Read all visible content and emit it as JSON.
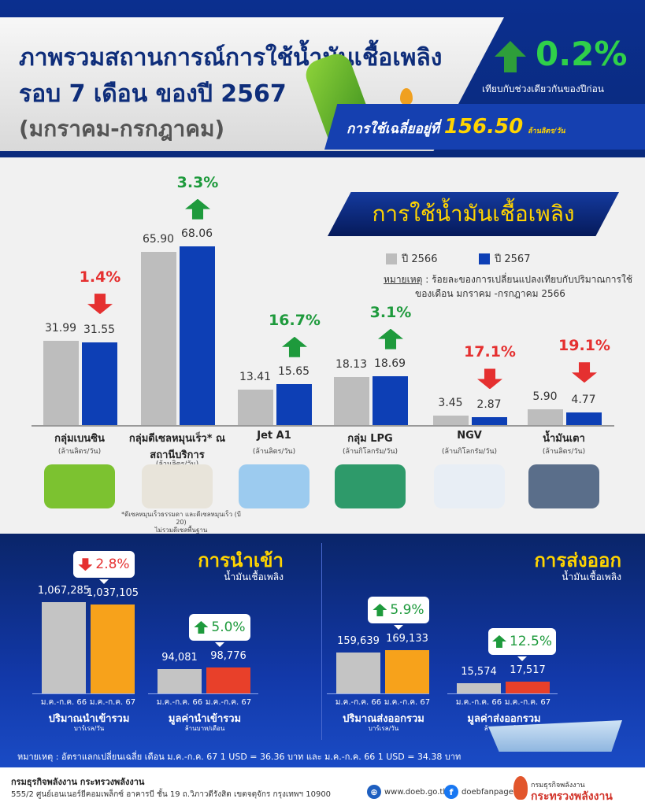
{
  "header": {
    "title_line1": "ภาพรวมสถานการณ์การใช้น้ำมันเชื้อเพลิง",
    "title_line2": "รอบ 7 เดือน ของปี 2567",
    "title_line3": "(มกราคม-กรกฎาคม)",
    "change_pct": "0.2%",
    "change_direction": "up",
    "change_caption": "เทียบกับช่วงเดียวกันของปีก่อน",
    "avg_prefix": "การใช้เฉลี่ยอยู่ที่",
    "avg_value": "156.50",
    "avg_unit": "ล้านลิตร/วัน"
  },
  "colors": {
    "y2566": "#bdbdbd",
    "y2567": "#0d3fb5",
    "up": "#1e9a3c",
    "down": "#e53030",
    "import_export_2567_volume": "#f7a21b",
    "import_export_2567_value": "#e8402a",
    "accent_yellow": "#ffd400"
  },
  "usage": {
    "section_title": "การใช้น้ำมันเชื้อเพลิง",
    "legend": [
      "ปี 2566",
      "ปี 2567"
    ],
    "note_label": "หมายเหตุ",
    "note_text": " : ร้อยละของการเปลี่ยนแปลงเทียบกับปริมาณการใช้",
    "note_text2": "ของเดือน มกราคม -กรกฎาคม 2566",
    "footnote1": "*ดีเซลหมุนเร็วธรรมดา และดีเซลหมุนเร็ว (บี 20)",
    "footnote2": "ไม่รวมดีเซลพื้นฐาน"
  },
  "chart_data": [
    {
      "type": "bar",
      "title": "การใช้น้ำมันเชื้อเพลิง",
      "categories": [
        "กลุ่มเบนซิน",
        "กลุ่มดีเซลหมุนเร็ว* ณ สถานีบริการ",
        "Jet A1",
        "กลุ่ม LPG",
        "NGV",
        "น้ำมันเตา"
      ],
      "units": [
        "(ล้านลิตร/วัน)",
        "(ล้านลิตร/วัน)",
        "(ล้านลิตร/วัน)",
        "(ล้านกิโลกรัม/วัน)",
        "(ล้านกิโลกรัม/วัน)",
        "(ล้านลิตร/วัน)"
      ],
      "series": [
        {
          "name": "ปี 2566",
          "values": [
            31.99,
            65.9,
            13.41,
            18.13,
            3.45,
            5.9
          ]
        },
        {
          "name": "ปี 2567",
          "values": [
            31.55,
            68.06,
            15.65,
            18.69,
            2.87,
            4.77
          ]
        }
      ],
      "change_labels": [
        "1.4%",
        "3.3%",
        "16.7%",
        "3.1%",
        "17.1%",
        "19.1%"
      ],
      "change_directions": [
        "down",
        "up",
        "up",
        "up",
        "down",
        "down"
      ],
      "value_labels": [
        [
          "31.99",
          "31.55"
        ],
        [
          "65.90",
          "68.06"
        ],
        [
          "13.41",
          "15.65"
        ],
        [
          "18.13",
          "18.69"
        ],
        [
          "3.45",
          "2.87"
        ],
        [
          "5.90",
          "4.77"
        ]
      ],
      "icons": [
        "car-icon",
        "pickup-truck-icon",
        "airplane-icon",
        "lpg-cylinder-icon",
        "ngv-truck-icon",
        "factory-icon"
      ],
      "legend_position": "top-right",
      "grid": false
    },
    {
      "type": "bar",
      "title": "การนำเข้า",
      "subtitle": "น้ำมันเชื้อเพลิง",
      "groups": [
        {
          "name": "ปริมาณนำเข้ารวม",
          "unit": "บาร์เรล/วัน",
          "categories": [
            "ม.ค.-ก.ค. 66",
            "ม.ค.-ก.ค. 67"
          ],
          "values": [
            1067285,
            1037105
          ],
          "labels": [
            "1,067,285",
            "1,037,105"
          ],
          "change": "2.8%",
          "direction": "down"
        },
        {
          "name": "มูลค่านำเข้ารวม",
          "unit": "ล้านบาท/เดือน",
          "categories": [
            "ม.ค.-ก.ค. 66",
            "ม.ค.-ก.ค. 67"
          ],
          "values": [
            94081,
            98776
          ],
          "labels": [
            "94,081",
            "98,776"
          ],
          "change": "5.0%",
          "direction": "up"
        }
      ]
    },
    {
      "type": "bar",
      "title": "การส่งออก",
      "subtitle": "น้ำมันเชื้อเพลิง",
      "groups": [
        {
          "name": "ปริมาณส่งออกรวม",
          "unit": "บาร์เรล/วัน",
          "categories": [
            "ม.ค.-ก.ค. 66",
            "ม.ค.-ก.ค. 67"
          ],
          "values": [
            159639,
            169133
          ],
          "labels": [
            "159,639",
            "169,133"
          ],
          "change": "5.9%",
          "direction": "up"
        },
        {
          "name": "มูลค่าส่งออกรวม",
          "unit": "ล้านบาท/เดือน",
          "categories": [
            "ม.ค.-ก.ค. 66",
            "ม.ค.-ก.ค. 67"
          ],
          "values": [
            15574,
            17517
          ],
          "labels": [
            "15,574",
            "17,517"
          ],
          "change": "12.5%",
          "direction": "up"
        }
      ]
    }
  ],
  "exchange_note": "หมายเหตุ : อัตราแลกเปลี่ยนเฉลี่ย เดือน ม.ค.-ก.ค. 67 1 USD = 36.36 บาท และ ม.ค.-ก.ค. 66 1 USD = 34.38 บาท",
  "footer": {
    "org": "กรมธุรกิจพลังงาน กระทรวงพลังงาน",
    "address": "555/2 ศูนย์เอนเนอร์ยีคอมเพล็กซ์ อาคารบี ชั้น 19 ถ.วิภาวดีรังสิต เขตจตุจักร กรุงเทพฯ 10900",
    "website": "www.doeb.go.th",
    "facebook": "doebfanpage",
    "logo_line1": "กรมธุรกิจพลังงาน",
    "logo_line2": "กระทรวงพลังงาน"
  }
}
